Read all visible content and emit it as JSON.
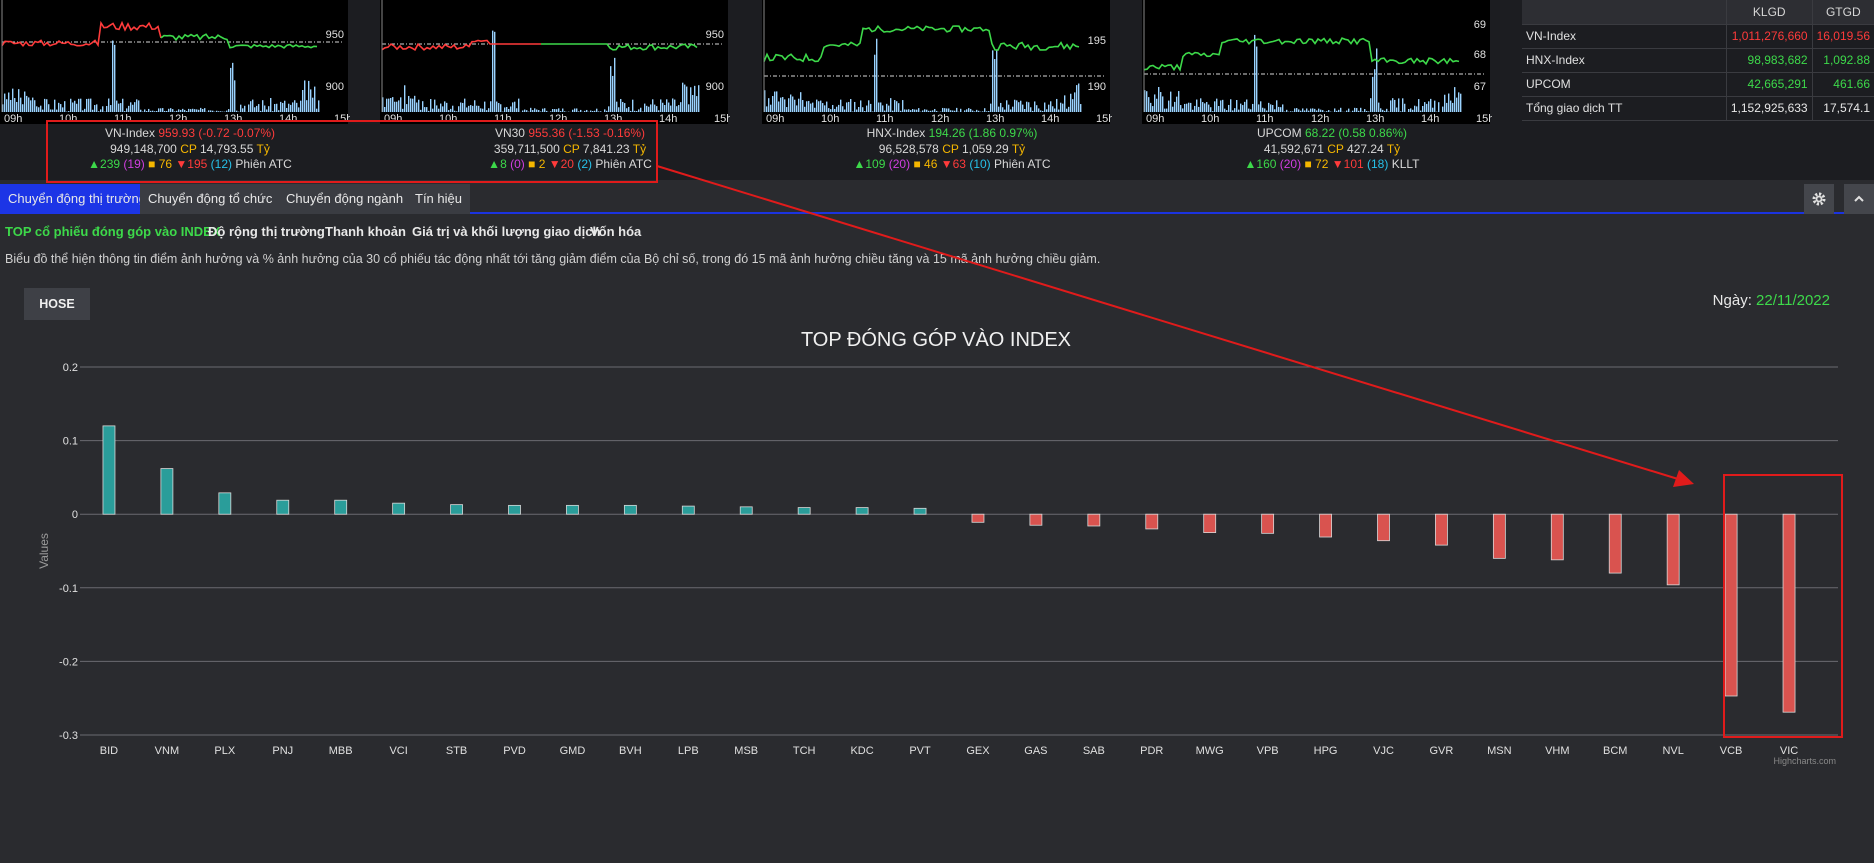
{
  "mini_charts": [
    {
      "name": "VN-Index",
      "price_ticks": [
        "950",
        "900"
      ],
      "time_ticks": [
        "09h",
        "10h",
        "11h",
        "12h",
        "13h",
        "14h",
        "15h"
      ]
    },
    {
      "name": "VN30",
      "price_ticks": [
        "950",
        "900"
      ],
      "time_ticks": [
        "09h",
        "10h",
        "11h",
        "12h",
        "13h",
        "14h",
        "15h"
      ]
    },
    {
      "name": "HNX-Index",
      "price_ticks": [
        "195",
        "190"
      ],
      "time_ticks": [
        "09h",
        "10h",
        "11h",
        "12h",
        "13h",
        "14h",
        "15h"
      ]
    },
    {
      "name": "UPCOM",
      "price_ticks": [
        "69",
        "68",
        "67"
      ],
      "time_ticks": [
        "09h",
        "10h",
        "11h",
        "12h",
        "13h",
        "14h",
        "15h"
      ]
    }
  ],
  "index_cards": [
    {
      "name": "VN-Index",
      "value": "959.93 (-0.72 -0.07%)",
      "volume": "949,148,700",
      "cp": "CP",
      "valueTy": "14,793.55",
      "ty": "Tỷ",
      "up": "239",
      "up_ceiling": "(19)",
      "flat": "76",
      "down": "195",
      "down_floor": "(12)",
      "session": "Phiên ATC",
      "color": "#ff3b3b"
    },
    {
      "name": "VN30",
      "value": "955.36 (-1.53 -0.16%)",
      "volume": "359,711,500",
      "cp": "CP",
      "valueTy": "7,841.23",
      "ty": "Tỷ",
      "up": "8",
      "up_ceiling": "(0)",
      "flat": "2",
      "down": "20",
      "down_floor": "(2)",
      "session": "Phiên ATC",
      "color": "#ff3b3b"
    },
    {
      "name": "HNX-Index",
      "value": "194.26 (1.86 0.97%)",
      "volume": "96,528,578",
      "cp": "CP",
      "valueTy": "1,059.29",
      "ty": "Tỷ",
      "up": "109",
      "up_ceiling": "(20)",
      "flat": "46",
      "down": "63",
      "down_floor": "(10)",
      "session": "Phiên ATC",
      "color": "#3dd94a"
    },
    {
      "name": "UPCOM",
      "value": "68.22 (0.58 0.86%)",
      "volume": "41,592,671",
      "cp": "CP",
      "valueTy": "427.24",
      "ty": "Tỷ",
      "up": "160",
      "up_ceiling": "(20)",
      "flat": "72",
      "down": "101",
      "down_floor": "(18)",
      "session": "KLLT",
      "color": "#3dd94a"
    }
  ],
  "summary_table": {
    "headers": [
      "",
      "KLGD",
      "GTGD"
    ],
    "rows": [
      {
        "name": "VN-Index",
        "klgd": "1,011,276,660",
        "gtgd": "16,019.56",
        "color": "#ff3b3b"
      },
      {
        "name": "HNX-Index",
        "klgd": "98,983,682",
        "gtgd": "1,092.88",
        "color": "#3dd94a"
      },
      {
        "name": "UPCOM",
        "klgd": "42,665,291",
        "gtgd": "461.66",
        "color": "#3dd94a"
      },
      {
        "name": "Tổng giao dịch TT",
        "klgd": "1,152,925,633",
        "gtgd": "17,574.1",
        "color": "#e8e8e8"
      }
    ]
  },
  "tabs": [
    "Chuyển động thị trường",
    "Chuyển động tổ chức",
    "Chuyển động ngành",
    "Tín hiệu"
  ],
  "active_tab": 0,
  "subnav": [
    "TOP cổ phiếu đóng góp vào INDEX",
    "Độ rộng thị trường",
    "Thanh khoản",
    "Giá trị và khối lượng giao dịch",
    "Vốn hóa"
  ],
  "description": "Biểu đồ thể hiện thông tin điểm ảnh hưởng và % ảnh hưởng của 30 cổ phiếu tác động nhất tới tăng giảm điểm của Bộ chỉ số, trong đó 15 mã ảnh hưởng chiều tăng và 15 mã ảnh hưởng chiều giảm.",
  "exchange_button": "HOSE",
  "date_label": "Ngày:",
  "date_value": "22/11/2022",
  "icons": {
    "settings": "gear-icon",
    "collapse": "chevron-up-icon"
  },
  "chart_data": {
    "type": "bar",
    "title": "TOP ĐÓNG GÓP VÀO INDEX",
    "xlabel": "",
    "ylabel": "Values",
    "ylim": [
      -0.3,
      0.2
    ],
    "yticks": [
      "0.2",
      "0.1",
      "0",
      "-0.1",
      "-0.2",
      "-0.3"
    ],
    "grid": true,
    "credit": "Highcharts.com",
    "positive_color": "#2a9d9a",
    "negative_color": "#d9534f",
    "categories": [
      "BID",
      "VNM",
      "PLX",
      "PNJ",
      "MBB",
      "VCI",
      "STB",
      "PVD",
      "GMD",
      "BVH",
      "LPB",
      "MSB",
      "TCH",
      "KDC",
      "PVT",
      "GEX",
      "GAS",
      "SAB",
      "PDR",
      "MWG",
      "VPB",
      "HPG",
      "VJC",
      "GVR",
      "MSN",
      "VHM",
      "BCM",
      "NVL",
      "VCB",
      "VIC"
    ],
    "values": [
      0.12,
      0.062,
      0.029,
      0.019,
      0.019,
      0.015,
      0.013,
      0.012,
      0.012,
      0.012,
      0.011,
      0.01,
      0.009,
      0.009,
      0.008,
      -0.011,
      -0.015,
      -0.016,
      -0.02,
      -0.025,
      -0.026,
      -0.031,
      -0.036,
      -0.042,
      -0.06,
      -0.062,
      -0.08,
      -0.096,
      -0.247,
      -0.269
    ]
  }
}
